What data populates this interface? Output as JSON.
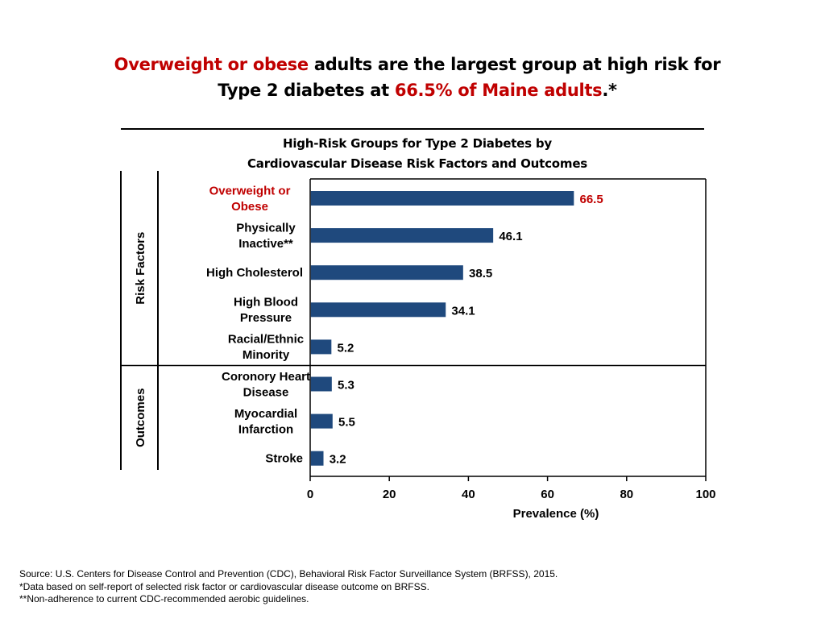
{
  "headline": {
    "line1_red": "Overweight or obese",
    "line1_rest": " adults are the largest group at high risk for",
    "line2_start": "Type 2 diabetes at ",
    "line2_red": "66.5% of Maine adults",
    "line2_end": ".*"
  },
  "colors": {
    "bar": "#1f497d",
    "highlight": "#c00000",
    "axis": "#000000"
  },
  "chart_data": {
    "type": "bar",
    "orientation": "horizontal",
    "title": "High-Risk Groups for Type 2 Diabetes by Cardiovascular Disease Risk Factors and Outcomes",
    "title_lines": [
      "High-Risk Groups for Type 2 Diabetes by",
      "Cardiovascular Disease Risk Factors and Outcomes"
    ],
    "xlabel": "Prevalence (%)",
    "xlim": [
      0,
      100
    ],
    "xticks": [
      0,
      20,
      40,
      60,
      80,
      100
    ],
    "grid": false,
    "categories": [
      [
        "Overweight or",
        "Obese"
      ],
      [
        "Physically",
        "Inactive**"
      ],
      [
        "High Cholesterol"
      ],
      [
        "High Blood",
        "Pressure"
      ],
      [
        "Racial/Ethnic",
        "Minority"
      ],
      [
        "Coronory Heart",
        "Disease"
      ],
      [
        "Myocardial",
        "Infarction"
      ],
      [
        "Stroke"
      ]
    ],
    "values": [
      66.5,
      46.1,
      38.5,
      34.1,
      5.2,
      5.3,
      5.5,
      3.2
    ],
    "value_labels": [
      "66.5",
      "46.1",
      "38.5",
      "34.1",
      "5.2",
      "5.3",
      "5.5",
      "3.2"
    ],
    "highlighted": [
      true,
      false,
      false,
      false,
      false,
      false,
      false,
      false
    ],
    "groups": [
      {
        "label": "Risk Factors",
        "count": 5
      },
      {
        "label": "Outcomes",
        "count": 3
      }
    ]
  },
  "footer": {
    "source": "Source: U.S. Centers for Disease Control and Prevention (CDC), Behavioral Risk Factor Surveillance System (BRFSS), 2015.",
    "note1": "*Data based on self-report of selected risk factor or cardiovascular disease outcome on BRFSS.",
    "note2": "**Non-adherence to current CDC-recommended aerobic guidelines."
  }
}
